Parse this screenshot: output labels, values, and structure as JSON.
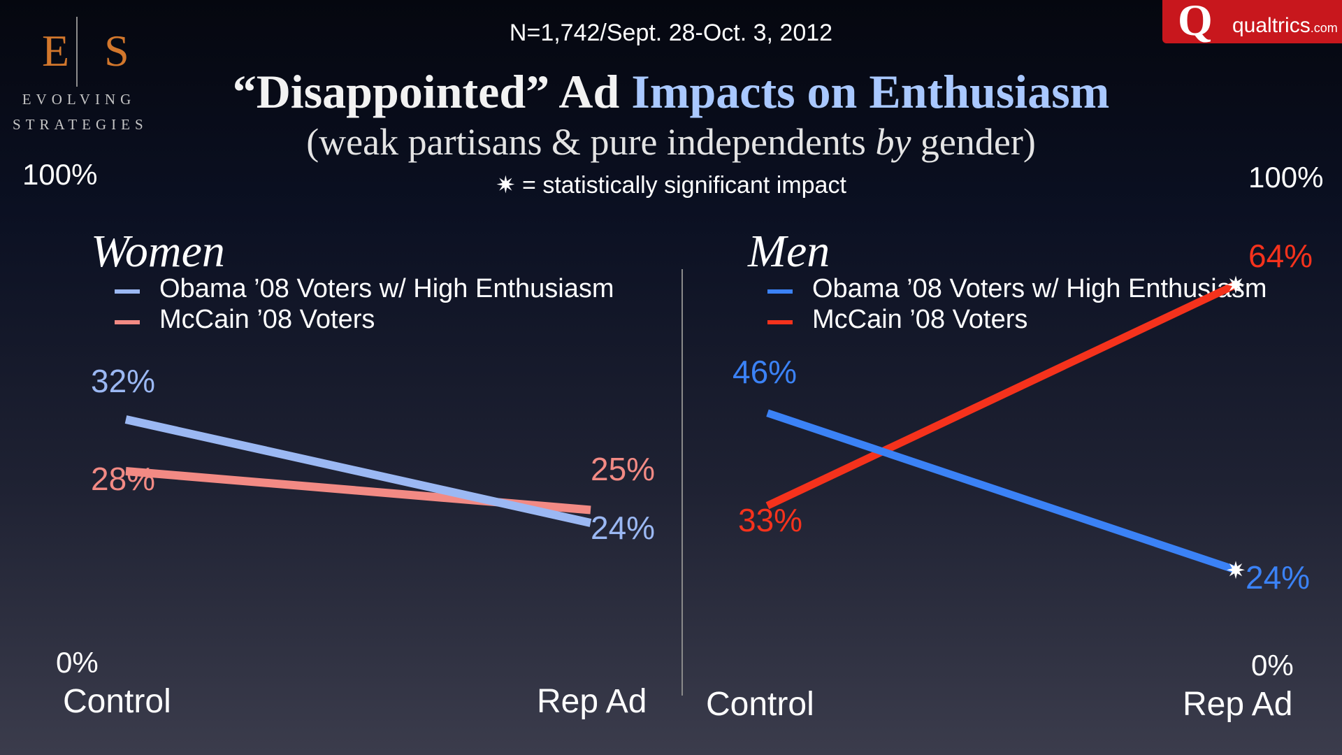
{
  "logo": {
    "letters": "E|S",
    "line1": "EVOLVING",
    "line2": "STRATEGIES"
  },
  "brand": {
    "glyph": "Q",
    "name": "qualtrics",
    "suffix": ".com",
    "color": "#c8171d"
  },
  "header": {
    "sample_note": "N=1,742/Sept. 28-Oct. 3, 2012",
    "title_part1": "“Disappointed” Ad ",
    "title_part2": "Impacts on Enthusiasm",
    "subtitle_part1": "(weak partisans & pure independents ",
    "subtitle_by": "by",
    "subtitle_part2": " gender)",
    "significance_note": "✷ = statistically significant impact"
  },
  "axes": {
    "left_top": "100%",
    "left_bottom": "0%",
    "right_top": "100%",
    "right_bottom": "0%"
  },
  "chart_data": [
    {
      "type": "line",
      "title": "Women",
      "categories": [
        "Control",
        "Rep Ad"
      ],
      "ylim": [
        0,
        100
      ],
      "legend_position": "top-left",
      "series": [
        {
          "name": "Obama ’08 Voters w/ High Enthusiasm",
          "values": [
            32,
            24
          ],
          "labels": [
            "32%",
            "24%"
          ],
          "color": "#9bb8f3",
          "significant": [
            false,
            false
          ]
        },
        {
          "name": "McCain ’08 Voters",
          "values": [
            28,
            25
          ],
          "labels": [
            "28%",
            "25%"
          ],
          "color": "#f28a84",
          "significant": [
            false,
            false
          ]
        }
      ]
    },
    {
      "type": "line",
      "title": "Men",
      "categories": [
        "Control",
        "Rep Ad"
      ],
      "ylim": [
        0,
        100
      ],
      "legend_position": "top-left",
      "series": [
        {
          "name": "Obama ’08 Voters w/ High Enthusiasm",
          "values": [
            46,
            24
          ],
          "labels": [
            "46%",
            "24%"
          ],
          "color": "#3b82f6",
          "significant": [
            false,
            true
          ]
        },
        {
          "name": "McCain ’08 Voters",
          "values": [
            33,
            64
          ],
          "labels": [
            "33%",
            "64%"
          ],
          "color": "#f5321c",
          "significant": [
            false,
            true
          ]
        }
      ]
    }
  ]
}
